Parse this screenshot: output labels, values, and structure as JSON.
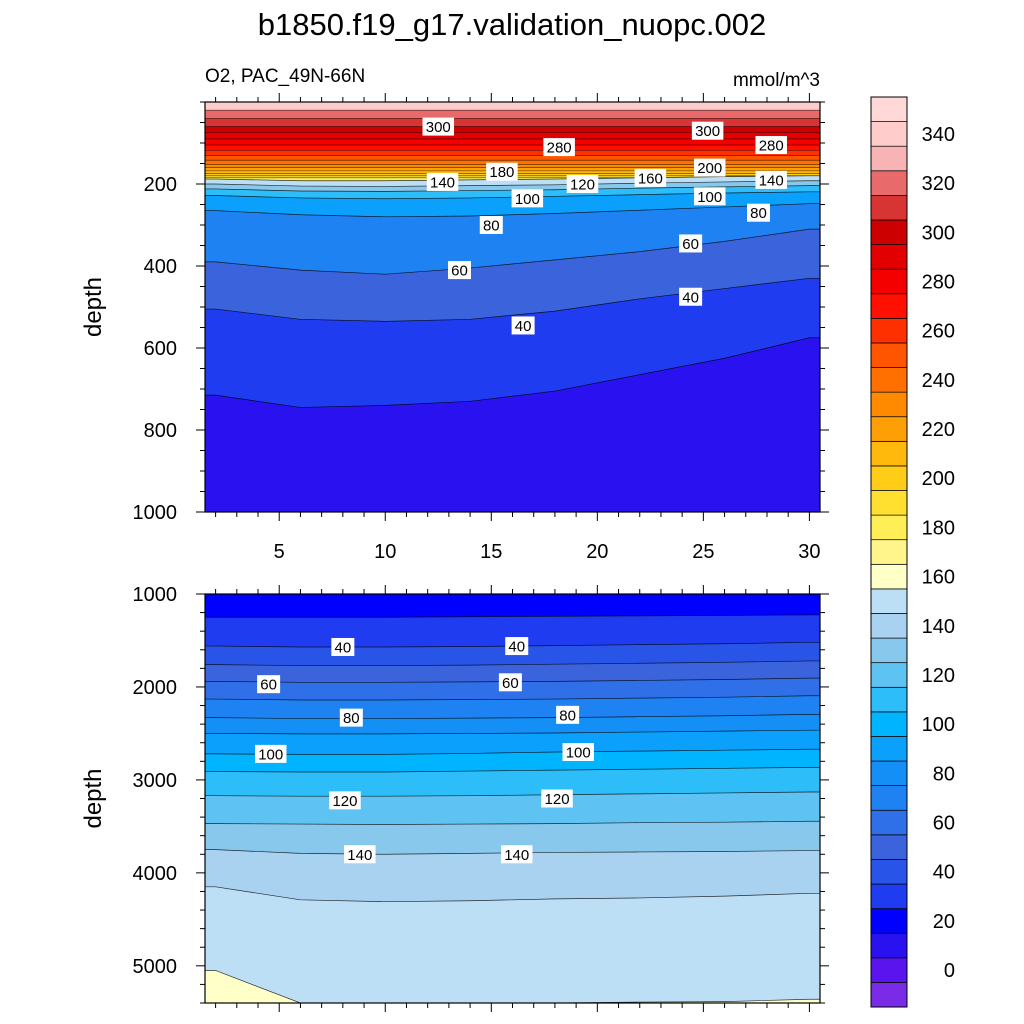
{
  "chart_data": [
    {
      "type": "heatmap",
      "id": "upper-panel",
      "title": "b1850.f19_g17.validation_nuopc.002",
      "subtitle_left": "O2, PAC_49N-66N",
      "subtitle_right": "mmol/m^3",
      "xlabel": "",
      "ylabel": "depth",
      "x_ticks": [
        5,
        10,
        15,
        20,
        25,
        30
      ],
      "x_tick_labels": [
        "5",
        "10",
        "15",
        "20",
        "25",
        "30"
      ],
      "xlim": [
        1.5,
        30.5
      ],
      "y_ticks": [
        200,
        400,
        600,
        800,
        1000
      ],
      "y_tick_labels": [
        "200",
        "400",
        "600",
        "800",
        "1000"
      ],
      "ylim": [
        0,
        1000
      ],
      "y_inverted": true,
      "x": [
        2,
        6,
        10,
        14,
        18,
        22,
        26,
        30
      ],
      "isolines": [
        {
          "level": 160,
          "depth": [
            188,
            192,
            192,
            190,
            188,
            185,
            182,
            180
          ]
        },
        {
          "level": 140,
          "depth": [
            200,
            205,
            206,
            204,
            202,
            198,
            195,
            192
          ]
        },
        {
          "level": 120,
          "depth": [
            212,
            217,
            218,
            216,
            214,
            210,
            207,
            204
          ]
        },
        {
          "level": 100,
          "depth": [
            228,
            234,
            236,
            234,
            230,
            226,
            222,
            219
          ]
        },
        {
          "level": 80,
          "depth": [
            265,
            275,
            280,
            278,
            272,
            264,
            256,
            248
          ]
        },
        {
          "level": 60,
          "depth": [
            390,
            410,
            420,
            405,
            385,
            365,
            340,
            310
          ]
        },
        {
          "level": 40,
          "depth": [
            505,
            530,
            535,
            530,
            510,
            480,
            455,
            430
          ]
        },
        {
          "level": 20,
          "depth": [
            715,
            745,
            740,
            730,
            705,
            665,
            625,
            575
          ]
        }
      ],
      "contour_labels": [
        {
          "text": "300",
          "x": 12.5,
          "y": 60
        },
        {
          "text": "280",
          "x": 18.2,
          "y": 110
        },
        {
          "text": "300",
          "x": 25.2,
          "y": 70
        },
        {
          "text": "280",
          "x": 28.2,
          "y": 105
        },
        {
          "text": "180",
          "x": 15.5,
          "y": 170
        },
        {
          "text": "200",
          "x": 25.3,
          "y": 160
        },
        {
          "text": "140",
          "x": 12.7,
          "y": 195
        },
        {
          "text": "120",
          "x": 19.3,
          "y": 200
        },
        {
          "text": "160",
          "x": 22.5,
          "y": 185
        },
        {
          "text": "140",
          "x": 28.2,
          "y": 190
        },
        {
          "text": "100",
          "x": 16.7,
          "y": 235
        },
        {
          "text": "100",
          "x": 25.3,
          "y": 230
        },
        {
          "text": "80",
          "x": 27.6,
          "y": 270
        },
        {
          "text": "80",
          "x": 15.0,
          "y": 300
        },
        {
          "text": "60",
          "x": 24.4,
          "y": 345
        },
        {
          "text": "60",
          "x": 13.5,
          "y": 410
        },
        {
          "text": "40",
          "x": 24.4,
          "y": 475
        },
        {
          "text": "40",
          "x": 16.5,
          "y": 545
        }
      ]
    },
    {
      "type": "heatmap",
      "id": "lower-panel",
      "xlabel": "",
      "ylabel": "depth",
      "x_ticks": [
        5,
        10,
        15,
        20,
        25,
        30
      ],
      "xlim": [
        1.5,
        30.5
      ],
      "y_ticks": [
        1000,
        2000,
        3000,
        4000,
        5000
      ],
      "y_tick_labels": [
        "1000",
        "2000",
        "3000",
        "4000",
        "5000"
      ],
      "ylim": [
        1000,
        5400
      ],
      "y_inverted": true,
      "x": [
        2,
        6,
        10,
        14,
        18,
        22,
        26,
        30
      ],
      "isolines": [
        {
          "level": 30,
          "depth": [
            1250,
            1250,
            1250,
            1245,
            1240,
            1235,
            1230,
            1225
          ]
        },
        {
          "level": 40,
          "depth": [
            1560,
            1570,
            1570,
            1565,
            1555,
            1545,
            1535,
            1520
          ]
        },
        {
          "level": 50,
          "depth": [
            1760,
            1770,
            1770,
            1765,
            1755,
            1745,
            1735,
            1720
          ]
        },
        {
          "level": 60,
          "depth": [
            1940,
            1950,
            1950,
            1945,
            1940,
            1930,
            1920,
            1905
          ]
        },
        {
          "level": 70,
          "depth": [
            2130,
            2140,
            2140,
            2135,
            2130,
            2120,
            2110,
            2095
          ]
        },
        {
          "level": 80,
          "depth": [
            2330,
            2340,
            2340,
            2335,
            2330,
            2320,
            2310,
            2295
          ]
        },
        {
          "level": 90,
          "depth": [
            2500,
            2505,
            2505,
            2500,
            2495,
            2485,
            2475,
            2465
          ]
        },
        {
          "level": 100,
          "depth": [
            2720,
            2725,
            2725,
            2715,
            2700,
            2690,
            2680,
            2670
          ]
        },
        {
          "level": 110,
          "depth": [
            2910,
            2915,
            2915,
            2905,
            2895,
            2885,
            2875,
            2865
          ]
        },
        {
          "level": 120,
          "depth": [
            3170,
            3175,
            3175,
            3170,
            3160,
            3150,
            3140,
            3130
          ]
        },
        {
          "level": 130,
          "depth": [
            3470,
            3475,
            3480,
            3475,
            3470,
            3460,
            3455,
            3445
          ]
        },
        {
          "level": 140,
          "depth": [
            3750,
            3790,
            3800,
            3790,
            3780,
            3775,
            3770,
            3760
          ]
        },
        {
          "level": 150,
          "depth": [
            4150,
            4290,
            4310,
            4300,
            4280,
            4270,
            4250,
            4220
          ]
        },
        {
          "level": 160,
          "depth": [
            5050,
            5400,
            5400,
            5400,
            5400,
            5390,
            5385,
            5360
          ]
        }
      ],
      "contour_labels": [
        {
          "text": "40",
          "x": 8.0,
          "y": 1570
        },
        {
          "text": "40",
          "x": 16.2,
          "y": 1560
        },
        {
          "text": "60",
          "x": 4.5,
          "y": 1970
        },
        {
          "text": "60",
          "x": 15.9,
          "y": 1950
        },
        {
          "text": "80",
          "x": 8.4,
          "y": 2330
        },
        {
          "text": "80",
          "x": 18.6,
          "y": 2300
        },
        {
          "text": "100",
          "x": 4.6,
          "y": 2720
        },
        {
          "text": "100",
          "x": 19.1,
          "y": 2700
        },
        {
          "text": "120",
          "x": 8.1,
          "y": 3220
        },
        {
          "text": "120",
          "x": 18.1,
          "y": 3200
        },
        {
          "text": "140",
          "x": 8.8,
          "y": 3800
        },
        {
          "text": "140",
          "x": 16.2,
          "y": 3800
        }
      ]
    }
  ],
  "colorbar": {
    "min": -10,
    "max": 360,
    "step": 10,
    "tick_labels": [
      "0",
      "20",
      "40",
      "60",
      "80",
      "100",
      "120",
      "140",
      "160",
      "180",
      "200",
      "220",
      "240",
      "260",
      "280",
      "300",
      "320",
      "340"
    ],
    "tick_values": [
      0,
      20,
      40,
      60,
      80,
      100,
      120,
      140,
      160,
      180,
      200,
      220,
      240,
      260,
      280,
      300,
      320,
      340
    ],
    "colors": [
      "#7a2be8",
      "#5a14ee",
      "#2a12f0",
      "#0000ff",
      "#1f3cf0",
      "#2855e8",
      "#3a63dc",
      "#2f6fe8",
      "#1f82f2",
      "#148ff6",
      "#0aa0fb",
      "#00b4ff",
      "#2dbdf8",
      "#5ec2f3",
      "#88c8ec",
      "#a8d2f0",
      "#bcdff5",
      "#ffffc8",
      "#fff58a",
      "#ffee55",
      "#ffe030",
      "#ffcc18",
      "#ffb80c",
      "#ff9f06",
      "#ff8a00",
      "#ff7000",
      "#ff5500",
      "#ff3000",
      "#ff1000",
      "#f40000",
      "#e20000",
      "#cc0000",
      "#d83434",
      "#e86a6a",
      "#f8b4b4",
      "#ffcccc",
      "#ffd8d8"
    ]
  }
}
